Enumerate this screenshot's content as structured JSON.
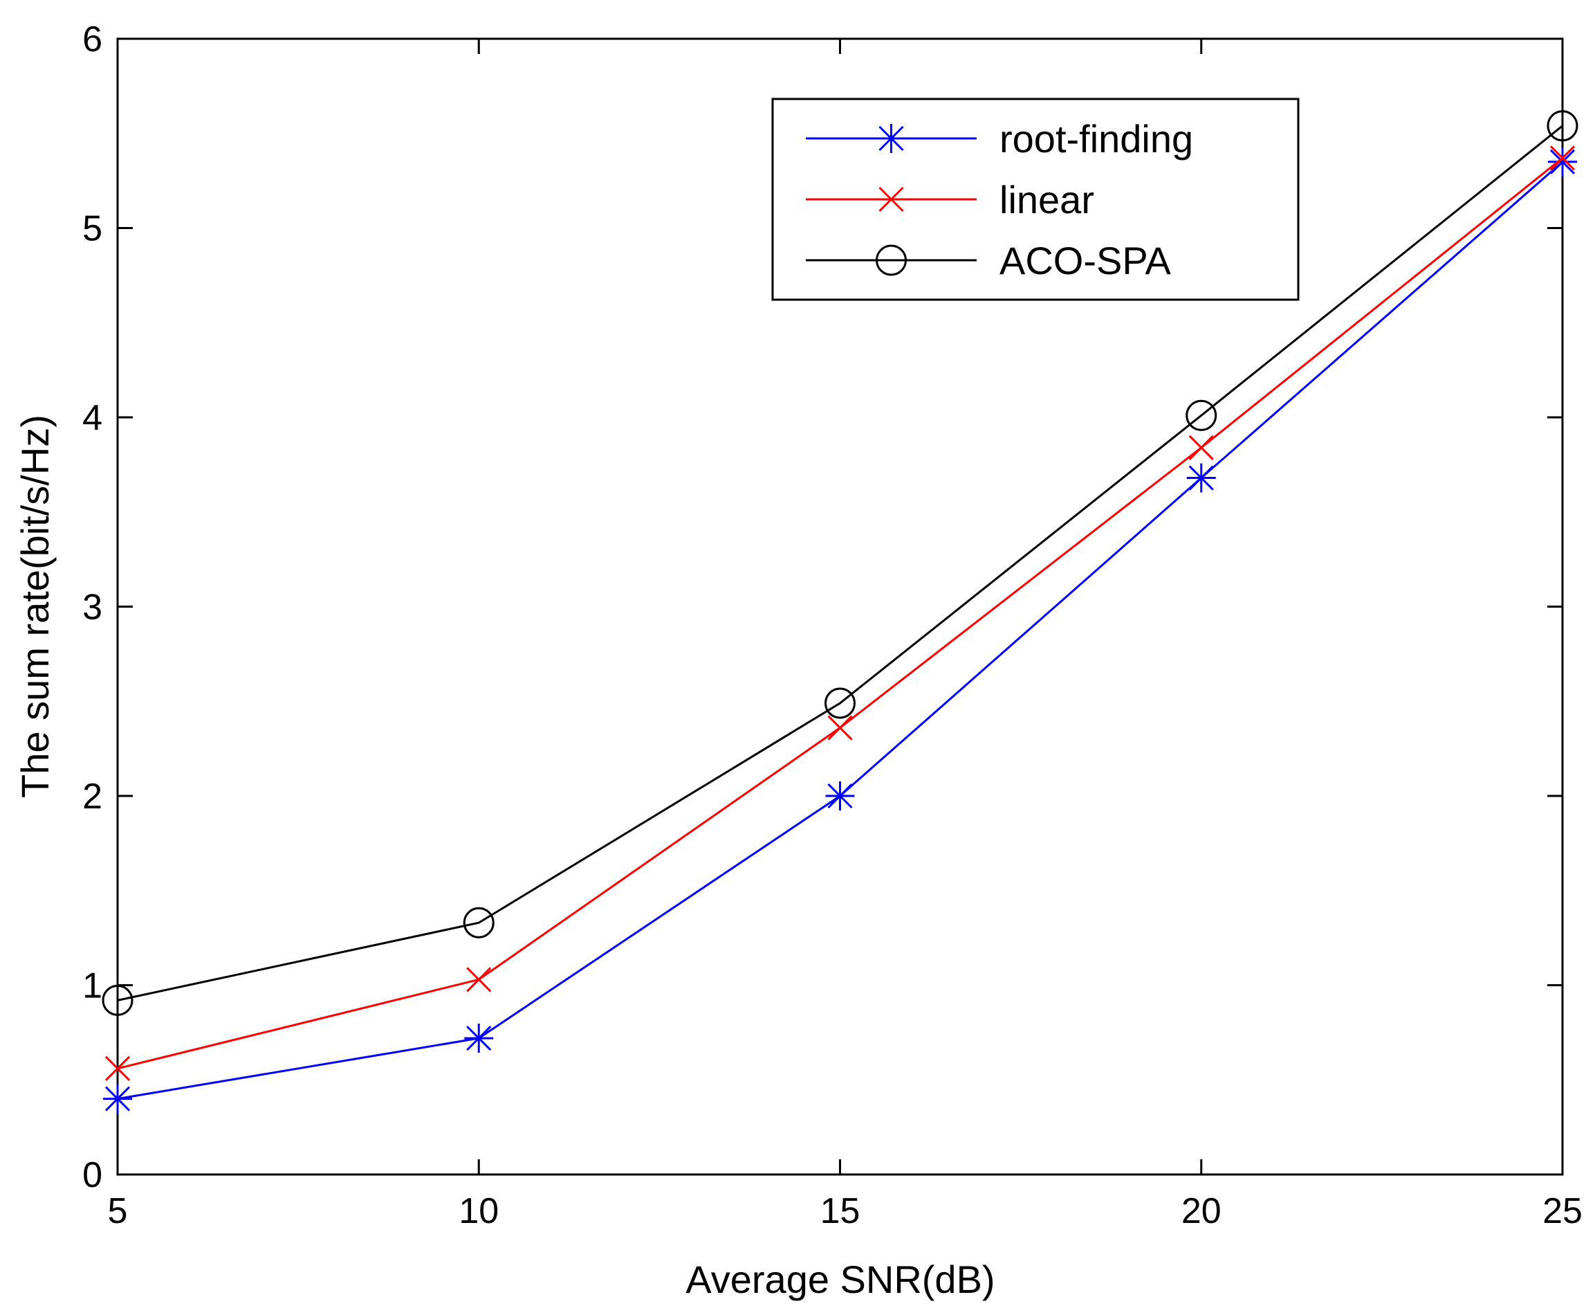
{
  "chart_data": {
    "type": "line",
    "title": "",
    "xlabel": "Average SNR(dB)",
    "ylabel": "The sum rate(bit/s/Hz)",
    "x": [
      5,
      10,
      15,
      20,
      25
    ],
    "xlim": [
      5,
      25
    ],
    "ylim": [
      0,
      6
    ],
    "xticks": [
      5,
      10,
      15,
      20,
      25
    ],
    "yticks": [
      0,
      1,
      2,
      3,
      4,
      5,
      6
    ],
    "xtick_labels": [
      "5",
      "10",
      "15",
      "20",
      "25"
    ],
    "ytick_labels": [
      "0",
      "1",
      "2",
      "3",
      "4",
      "5",
      "6"
    ],
    "grid": false,
    "legend_position": "top-right",
    "series": [
      {
        "name": "root-finding",
        "color": "#0000ff",
        "marker": "asterisk",
        "values": [
          0.4,
          0.72,
          2.0,
          3.68,
          5.35
        ]
      },
      {
        "name": "linear",
        "color": "#ff0000",
        "marker": "x",
        "values": [
          0.56,
          1.03,
          2.36,
          3.84,
          5.37
        ]
      },
      {
        "name": "ACO-SPA",
        "color": "#000000",
        "marker": "circle",
        "values": [
          0.92,
          1.33,
          2.49,
          4.01,
          5.54
        ]
      }
    ]
  }
}
